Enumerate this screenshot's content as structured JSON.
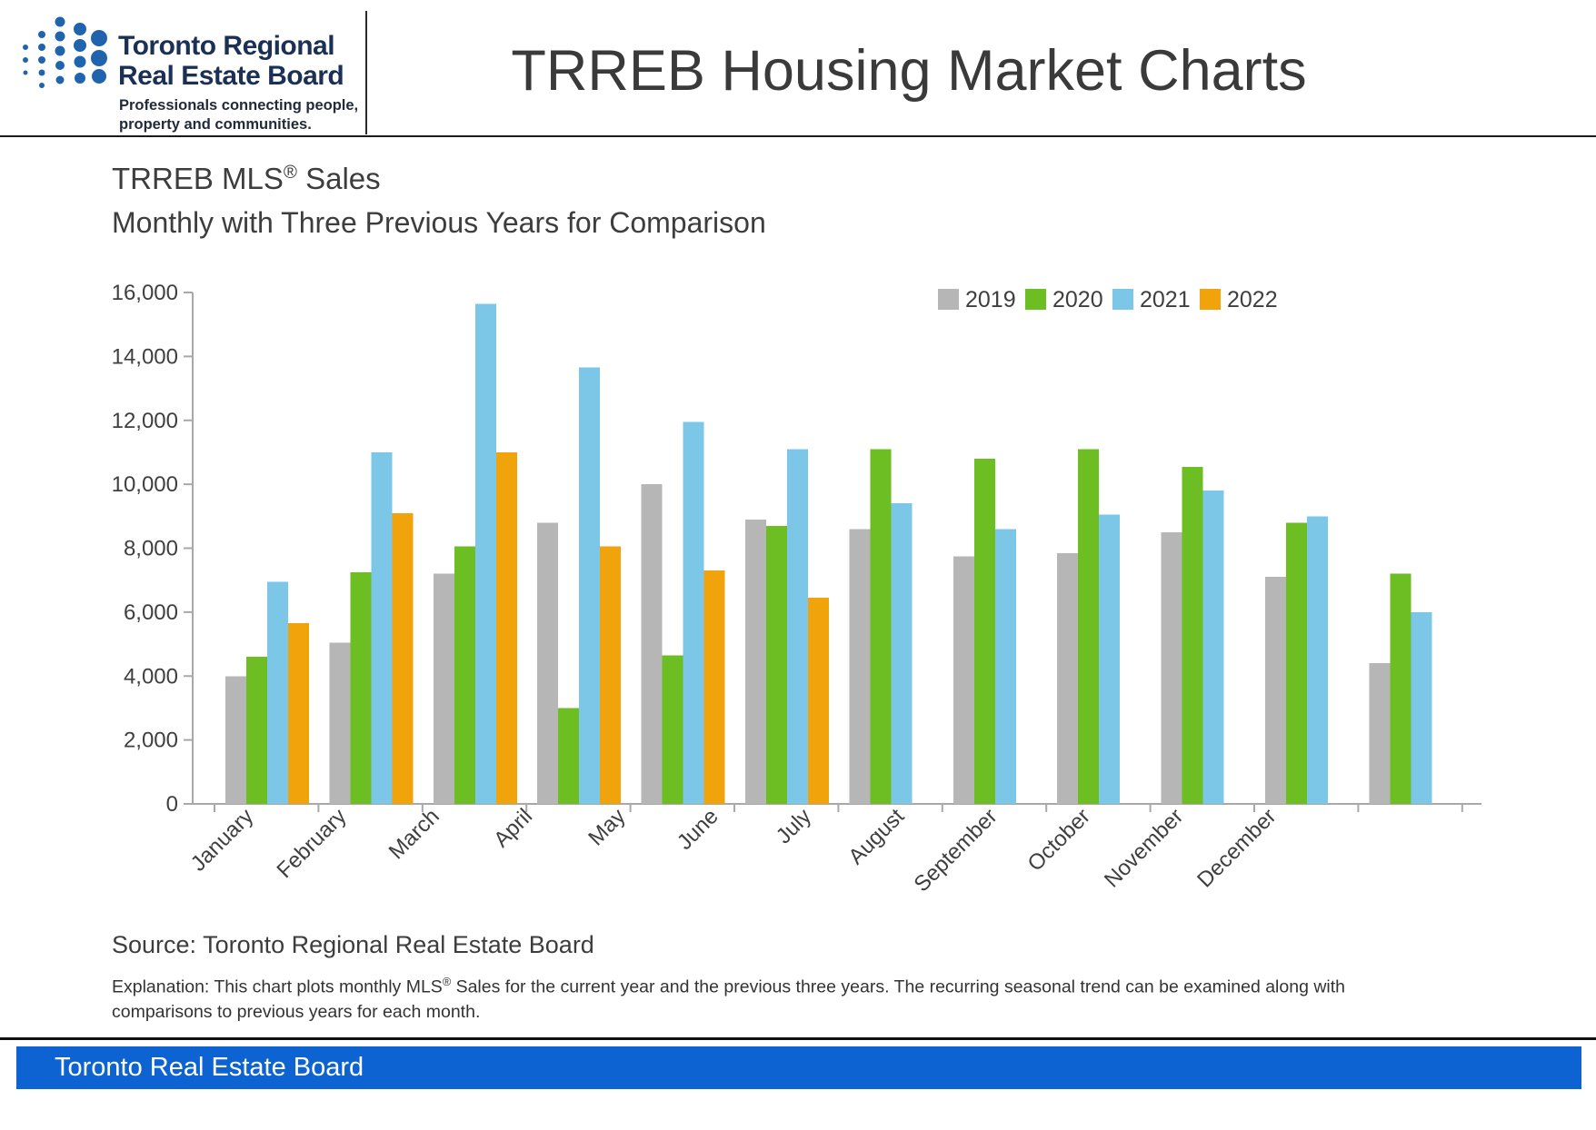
{
  "header": {
    "logo": {
      "line1": "Toronto Regional",
      "line2": "Real Estate Board",
      "tagline_line1": "Professionals connecting people,",
      "tagline_line2": "property and communities.",
      "dot_color": "#2064ae",
      "text_color": "#1b3055"
    },
    "title": "TRREB Housing Market Charts"
  },
  "chart": {
    "title_pre": "TRREB MLS",
    "title_sup": "®",
    "title_post": " Sales",
    "subtitle": "Monthly with Three Previous Years for Comparison"
  },
  "chart_data": {
    "type": "bar",
    "title": "TRREB MLS® Sales",
    "subtitle": "Monthly with Three Previous Years for Comparison",
    "categories": [
      "January",
      "February",
      "March",
      "April",
      "May",
      "June",
      "July",
      "August",
      "September",
      "October",
      "November",
      "December"
    ],
    "series": [
      {
        "name": "2019",
        "color": "#b6b6b6",
        "values": [
          4000,
          5050,
          7200,
          8800,
          10000,
          8900,
          8600,
          7750,
          7850,
          8500,
          7100,
          4400
        ]
      },
      {
        "name": "2020",
        "color": "#6cbe23",
        "values": [
          4600,
          7250,
          8050,
          3000,
          4650,
          8700,
          11100,
          10800,
          11100,
          10550,
          8800,
          7200
        ]
      },
      {
        "name": "2021",
        "color": "#7cc6e8",
        "values": [
          6950,
          11000,
          15650,
          13650,
          11950,
          11100,
          9400,
          8600,
          9050,
          9800,
          9000,
          6000
        ]
      },
      {
        "name": "2022",
        "color": "#f0a30b",
        "values": [
          5650,
          9100,
          11000,
          8050,
          7300,
          6450,
          null,
          null,
          null,
          null,
          null,
          null
        ]
      }
    ],
    "ylim": [
      0,
      16000
    ],
    "ytick_step": 2000,
    "ytick_labels": [
      "0",
      "2,000",
      "4,000",
      "6,000",
      "8,000",
      "10,000",
      "12,000",
      "14,000",
      "16,000"
    ],
    "legend_position": "top-right",
    "grid": false,
    "axis_color": "#a8a8a8"
  },
  "source": "Source: Toronto Regional Real Estate Board",
  "explanation": {
    "line1_pre": "Explanation: This chart plots monthly MLS",
    "line1_sup": "®",
    "line1_post": " Sales for the current year and the previous three years. The recurring seasonal trend can be examined along with",
    "line2": "comparisons to previous years for each month."
  },
  "footer": {
    "text": "Toronto Real Estate Board"
  }
}
